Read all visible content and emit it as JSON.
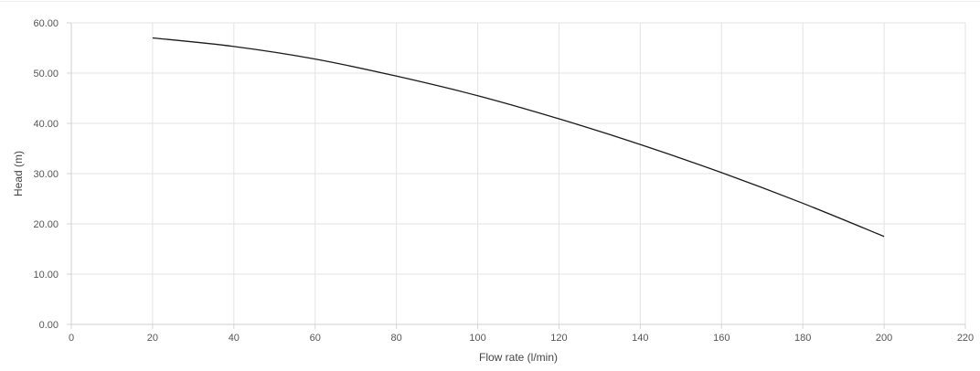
{
  "chart_data": {
    "type": "line",
    "xlabel": "Flow rate (l/min)",
    "ylabel": "Head (m)",
    "xlim": [
      0,
      220
    ],
    "ylim": [
      0,
      60
    ],
    "x_ticks": [
      "0",
      "20",
      "40",
      "60",
      "80",
      "100",
      "120",
      "140",
      "160",
      "180",
      "200",
      "220"
    ],
    "y_ticks": [
      "0.00",
      "10.00",
      "20.00",
      "30.00",
      "40.00",
      "50.00",
      "60.00"
    ],
    "grid": true,
    "legend": "none",
    "series": [
      {
        "color": "#1a1a1a",
        "x": [
          20,
          40,
          60,
          80,
          100,
          120,
          140,
          160,
          180,
          200
        ],
        "y": [
          57.0,
          55.3,
          52.8,
          49.4,
          45.5,
          40.9,
          35.8,
          30.2,
          24.1,
          17.5
        ]
      }
    ]
  }
}
